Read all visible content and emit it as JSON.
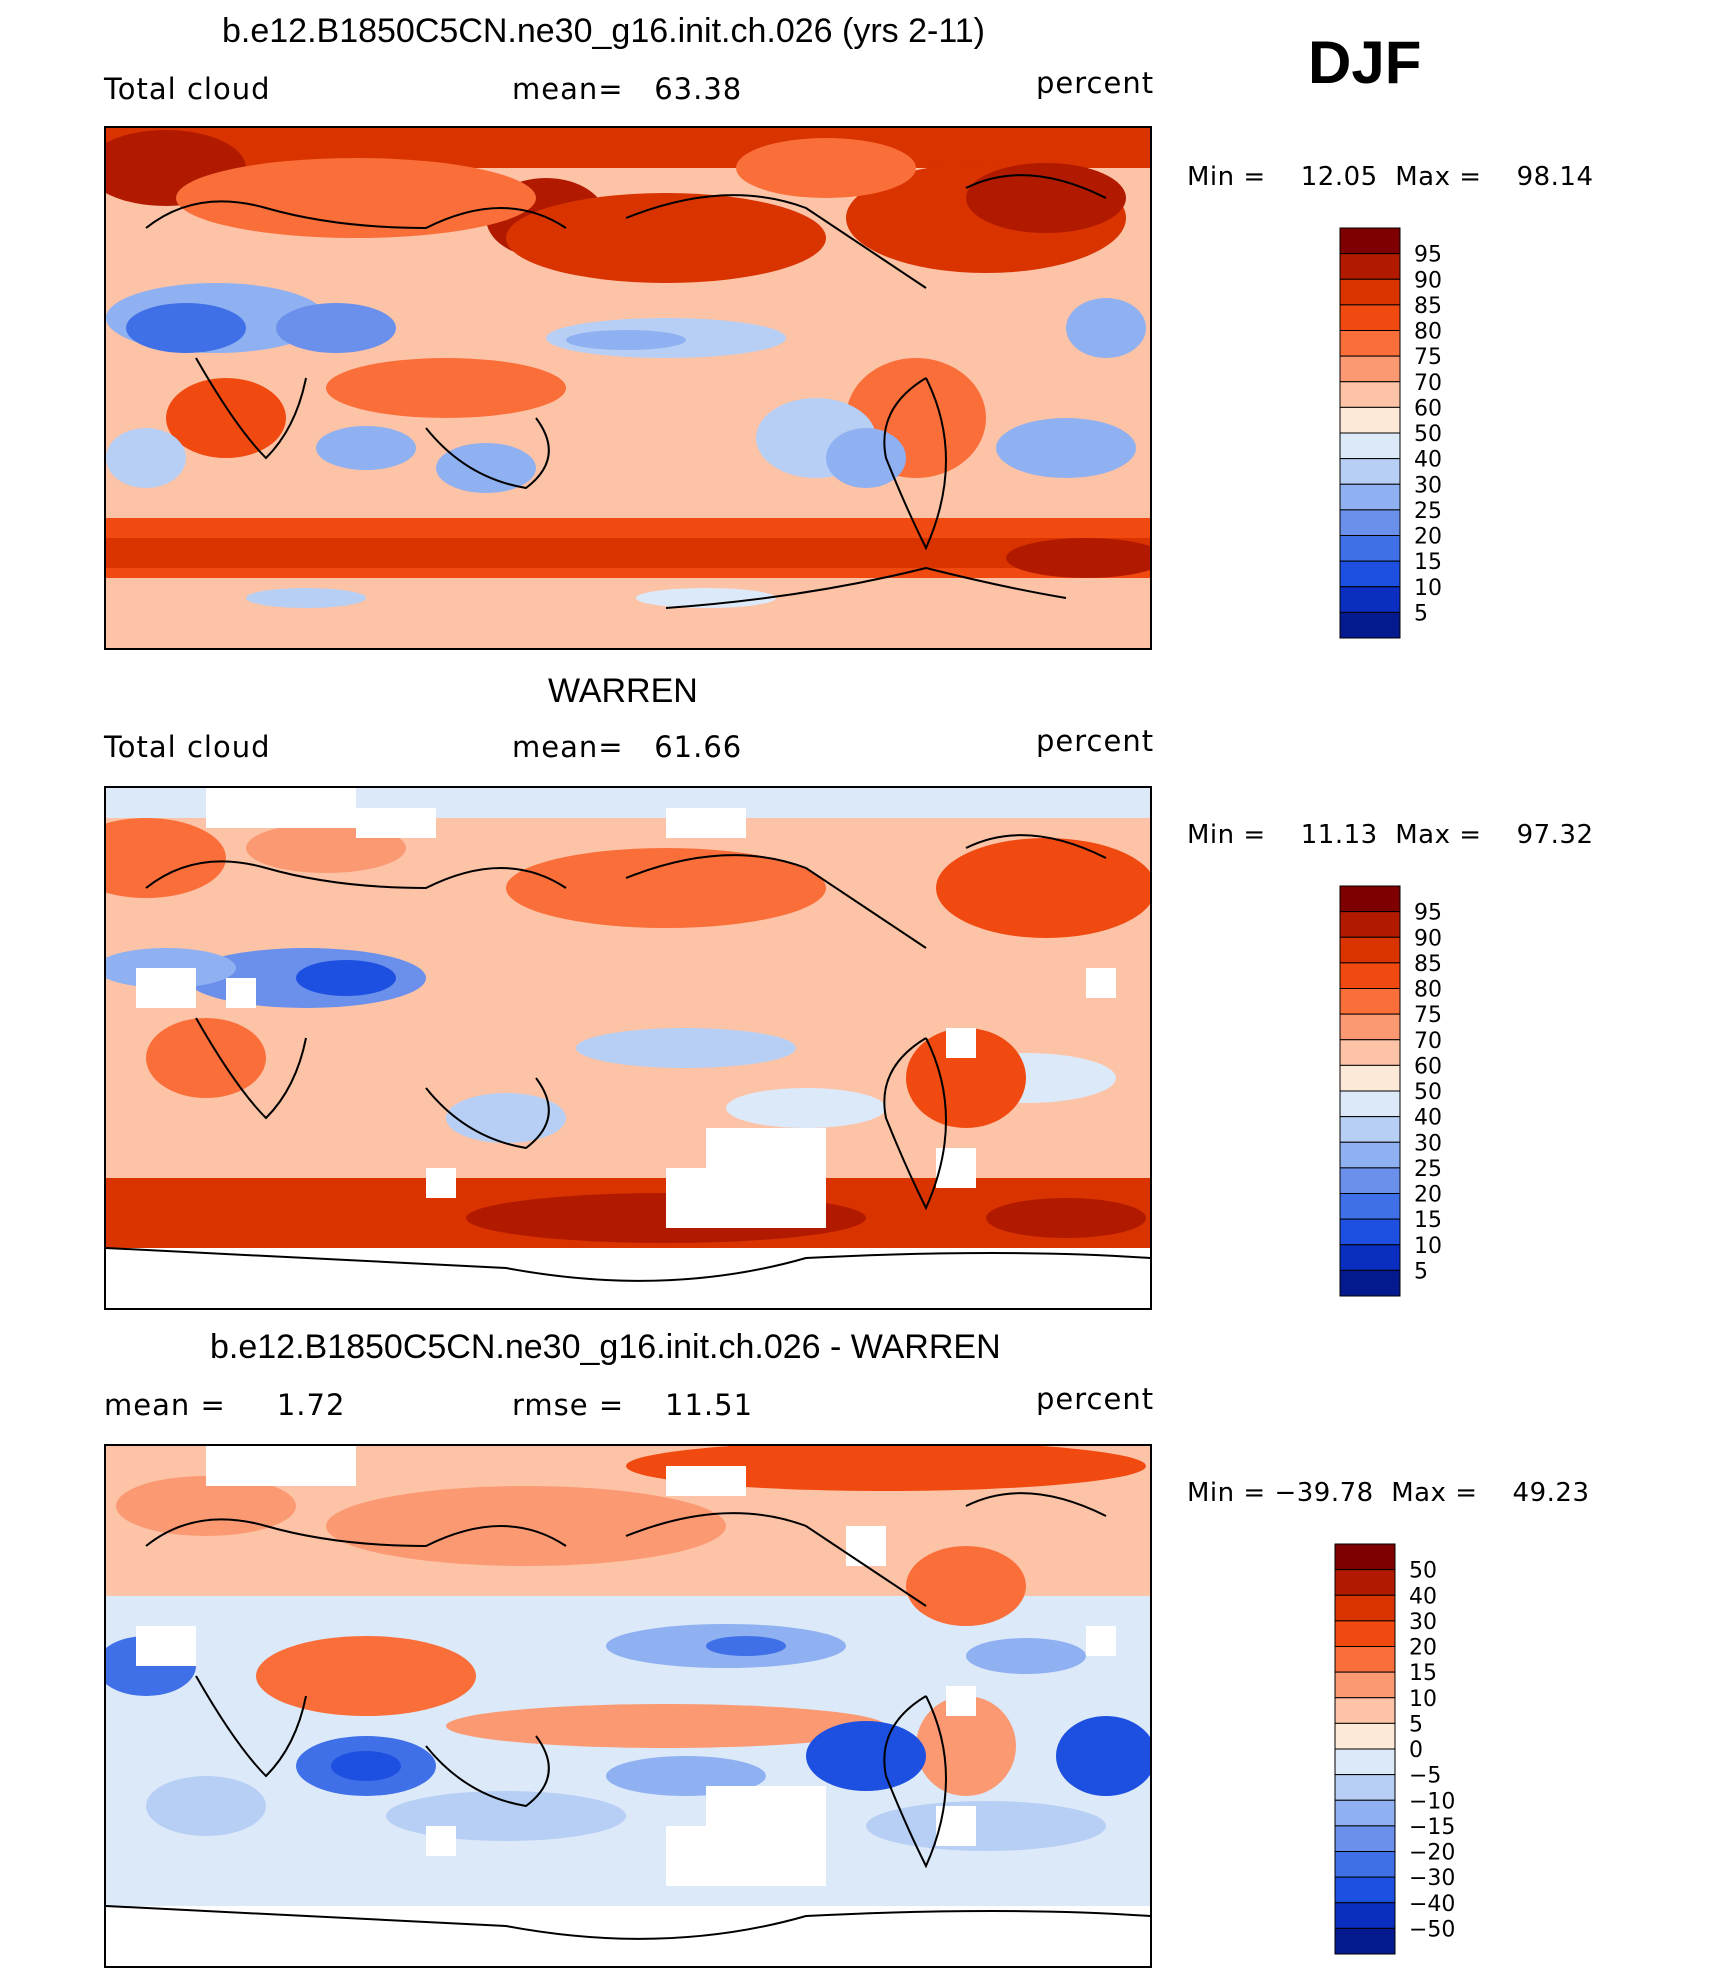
{
  "header": {
    "season": "DJF"
  },
  "panels": [
    {
      "id": "model",
      "title": "b.e12.B1850C5CN.ne30_g16.init.ch.026 (yrs 2-11)",
      "left_label": "Total cloud",
      "center_label": "mean=   63.38",
      "units": "percent",
      "minmax": "Min =    12.05  Max =    98.14",
      "colorbar": {
        "levels": [
          "95",
          "90",
          "85",
          "80",
          "75",
          "70",
          "60",
          "50",
          "40",
          "30",
          "25",
          "20",
          "15",
          "10",
          "5"
        ],
        "colors": [
          "#7f0000",
          "#b21a00",
          "#d93300",
          "#f04a10",
          "#fa6e3a",
          "#fb9a72",
          "#fcc3a6",
          "#fde9d8",
          "#dce9f9",
          "#b7cff5",
          "#8fb0f1",
          "#6a90ec",
          "#4070e8",
          "#1d4fe0",
          "#0a2fc0",
          "#061a8f"
        ]
      }
    },
    {
      "id": "obs",
      "title": "WARREN",
      "left_label": "Total cloud",
      "center_label": "mean=   61.66",
      "units": "percent",
      "minmax": "Min =    11.13  Max =    97.32",
      "colorbar": {
        "levels": [
          "95",
          "90",
          "85",
          "80",
          "75",
          "70",
          "60",
          "50",
          "40",
          "30",
          "25",
          "20",
          "15",
          "10",
          "5"
        ],
        "colors": [
          "#7f0000",
          "#b21a00",
          "#d93300",
          "#f04a10",
          "#fa6e3a",
          "#fb9a72",
          "#fcc3a6",
          "#fde9d8",
          "#dce9f9",
          "#b7cff5",
          "#8fb0f1",
          "#6a90ec",
          "#4070e8",
          "#1d4fe0",
          "#0a2fc0",
          "#061a8f"
        ]
      }
    },
    {
      "id": "diff",
      "title": "b.e12.B1850C5CN.ne30_g16.init.ch.026 - WARREN",
      "left_label": "mean =     1.72",
      "center_label": "rmse =    11.51",
      "units": "percent",
      "minmax": "Min = −39.78  Max =    49.23",
      "colorbar": {
        "levels": [
          "50",
          "40",
          "30",
          "20",
          "15",
          "10",
          "5",
          "0",
          "−5",
          "−10",
          "−15",
          "−20",
          "−30",
          "−40",
          "−50"
        ],
        "colors": [
          "#7f0000",
          "#b21a00",
          "#d93300",
          "#f04a10",
          "#fa6e3a",
          "#fb9a72",
          "#fcc3a6",
          "#fde9d8",
          "#dce9f9",
          "#b7cff5",
          "#8fb0f1",
          "#6a90ec",
          "#4070e8",
          "#1d4fe0",
          "#0a2fc0",
          "#061a8f"
        ]
      }
    }
  ]
}
